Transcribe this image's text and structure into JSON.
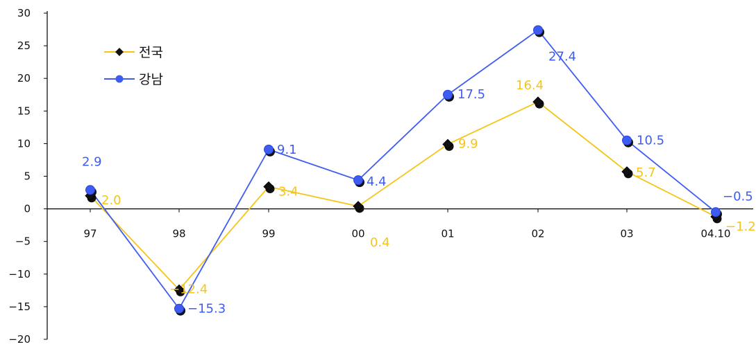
{
  "chart_data": {
    "type": "line",
    "categories": [
      "97",
      "98",
      "99",
      "00",
      "01",
      "02",
      "03",
      "04.10"
    ],
    "ylim": [
      -20,
      30
    ],
    "yticks": [
      30,
      25,
      20,
      15,
      10,
      5,
      0,
      -5,
      -10,
      -15,
      -20
    ],
    "grid": false,
    "legend_position": "top-left",
    "series": [
      {
        "name": "전국",
        "color": "#f5c518",
        "marker": "diamond",
        "values": [
          2.0,
          -12.4,
          3.4,
          0.4,
          9.9,
          16.4,
          5.7,
          -1.2
        ],
        "labels": [
          "2.0",
          "-12.4",
          "3.4",
          "0.4",
          "9.9",
          "16.4",
          "5.7",
          "-1.2"
        ]
      },
      {
        "name": "강남",
        "color": "#3f5cf2",
        "marker": "circle",
        "values": [
          2.9,
          -15.3,
          9.1,
          4.4,
          17.5,
          27.4,
          10.5,
          -0.5
        ],
        "labels": [
          "2.9",
          "-15.3",
          "9.1",
          "4.4",
          "17.5",
          "27.4",
          "10.5",
          "-0.5"
        ]
      }
    ]
  }
}
